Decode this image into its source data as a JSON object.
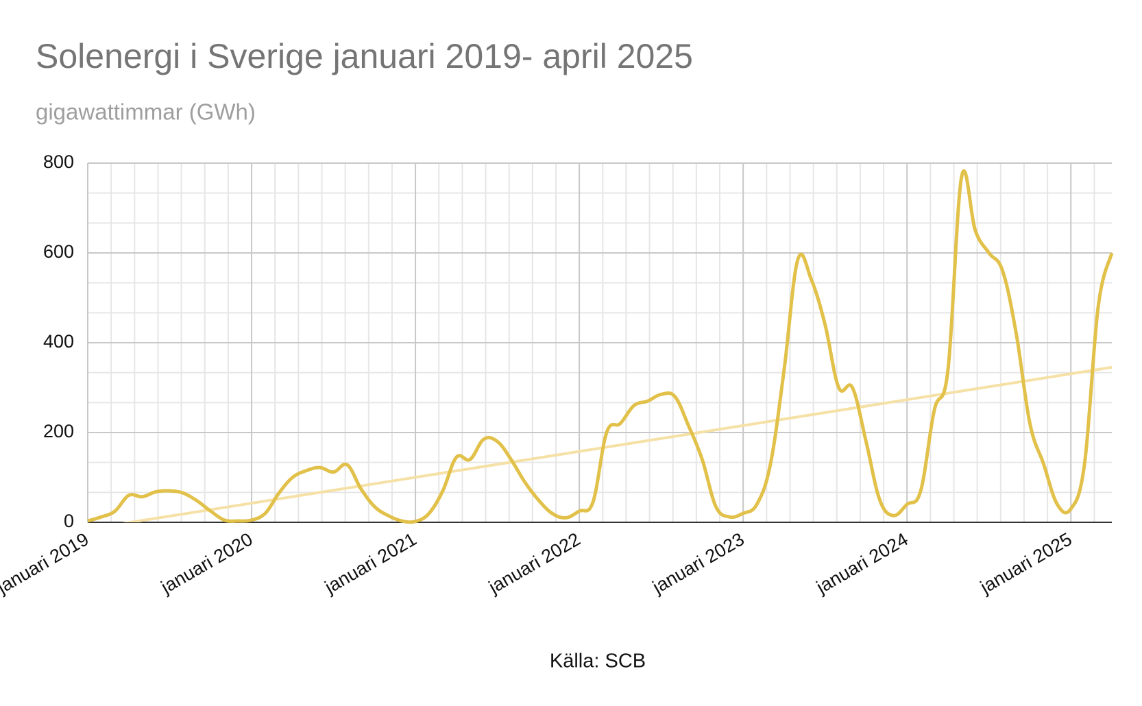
{
  "chart_data": {
    "type": "line",
    "title": "Solenergi i Sverige januari 2019- april 2025",
    "subtitle": "gigawattimmar (GWh)",
    "source": "Källa: SCB",
    "categories": [
      "januari 2019",
      null,
      null,
      null,
      null,
      null,
      null,
      null,
      null,
      null,
      null,
      null,
      "januari 2020",
      null,
      null,
      null,
      null,
      null,
      null,
      null,
      null,
      null,
      null,
      null,
      "januari 2021",
      null,
      null,
      null,
      null,
      null,
      null,
      null,
      null,
      null,
      null,
      null,
      "januari 2022",
      null,
      null,
      null,
      null,
      null,
      null,
      null,
      null,
      null,
      null,
      null,
      "januari 2023",
      null,
      null,
      null,
      null,
      null,
      null,
      null,
      null,
      null,
      null,
      null,
      "januari 2024",
      null,
      null,
      null,
      null,
      null,
      null,
      null,
      null,
      null,
      null,
      null,
      "januari 2025",
      null,
      null,
      null
    ],
    "series": [
      {
        "name": "Solenergi",
        "color": "#e2c14a",
        "trendline_color": "#f5e1a6",
        "values": [
          3,
          12,
          25,
          60,
          57,
          68,
          70,
          65,
          48,
          25,
          5,
          3,
          5,
          20,
          65,
          100,
          115,
          122,
          112,
          128,
          75,
          35,
          15,
          3,
          2,
          20,
          70,
          145,
          140,
          185,
          180,
          140,
          90,
          50,
          20,
          10,
          25,
          45,
          200,
          220,
          260,
          270,
          285,
          280,
          215,
          140,
          35,
          12,
          20,
          40,
          130,
          340,
          585,
          540,
          440,
          300,
          300,
          180,
          50,
          15,
          40,
          70,
          250,
          340,
          770,
          650,
          600,
          560,
          420,
          220,
          130,
          40,
          30,
          130,
          480,
          600
        ]
      }
    ],
    "trendline": true,
    "ylim": [
      0,
      800
    ],
    "yticks": [
      0,
      200,
      400,
      600,
      800
    ],
    "grid": true,
    "minor_grid_divisions": {
      "x": 7,
      "y": 3
    }
  }
}
